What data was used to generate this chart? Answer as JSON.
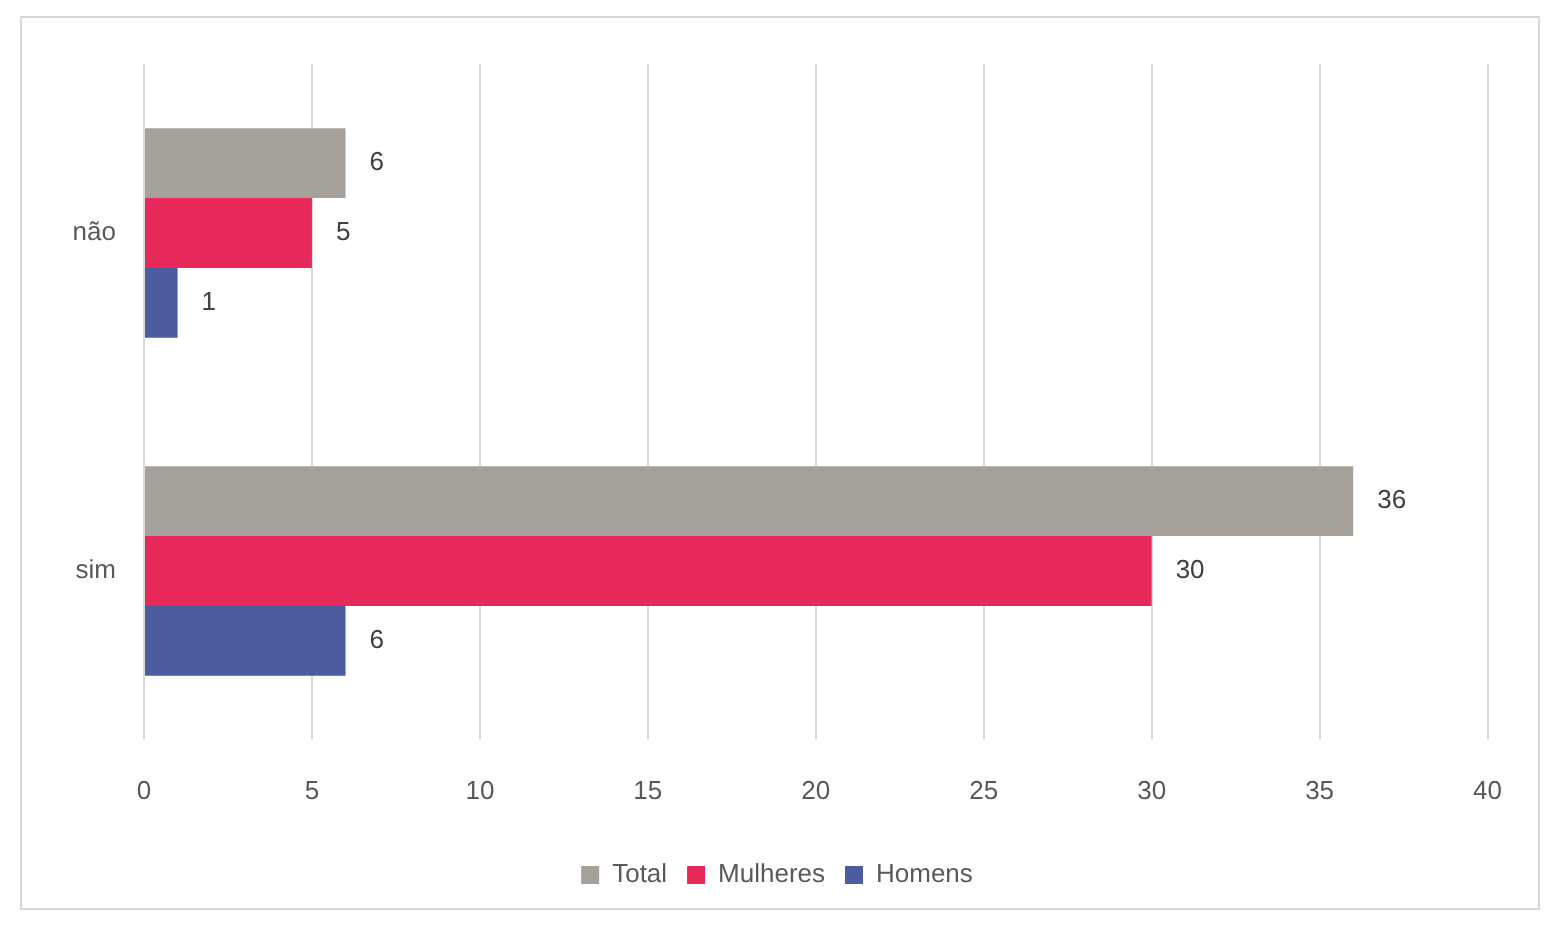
{
  "chart_data": {
    "type": "bar",
    "orientation": "horizontal",
    "categories": [
      "não",
      "sim"
    ],
    "series": [
      {
        "name": "Total",
        "color": "#a6a09b",
        "values": [
          6,
          36
        ]
      },
      {
        "name": "Mulheres",
        "color": "#e6295a",
        "values": [
          5,
          30
        ]
      },
      {
        "name": "Homens",
        "color": "#4b5d9f",
        "values": [
          1,
          6
        ]
      }
    ],
    "xlim": [
      0,
      40
    ],
    "xticks": [
      0,
      5,
      10,
      15,
      20,
      25,
      30,
      35,
      40
    ],
    "grid": "x",
    "legend": "bottom",
    "data_labels": true
  }
}
